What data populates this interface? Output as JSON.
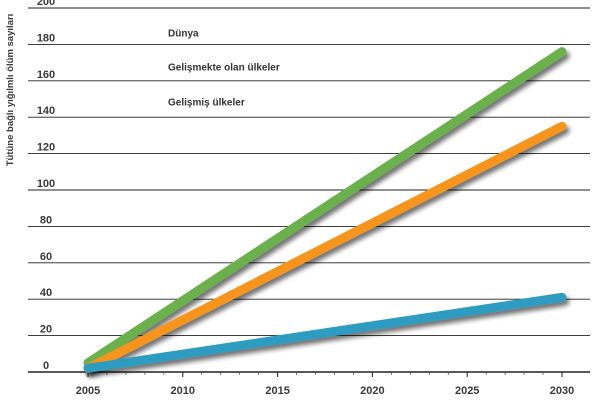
{
  "chart_data": {
    "type": "line",
    "ylabel": "Tütüne bağlı yığılmlı ölüm sayıları",
    "xlabel": "",
    "xlim": [
      2005,
      2030
    ],
    "ylim": [
      0,
      200
    ],
    "x_ticks": [
      2005,
      2010,
      2015,
      2020,
      2025,
      2030
    ],
    "y_ticks": [
      0,
      20,
      40,
      60,
      80,
      100,
      120,
      140,
      160,
      180,
      200
    ],
    "grid": "horizontal",
    "legend_position": "top-left",
    "series": [
      {
        "name": "Dünya",
        "color": "#6ab04c",
        "x": [
          2005,
          2030
        ],
        "y": [
          5,
          176
        ]
      },
      {
        "name": "Gelişmekte olan ülkeler",
        "color": "#f7941d",
        "x": [
          2005,
          2030
        ],
        "y": [
          2,
          135
        ]
      },
      {
        "name": "Gelişmiş ülkeler",
        "color": "#2d9bc0",
        "x": [
          2005,
          2030
        ],
        "y": [
          2,
          41
        ]
      }
    ]
  }
}
